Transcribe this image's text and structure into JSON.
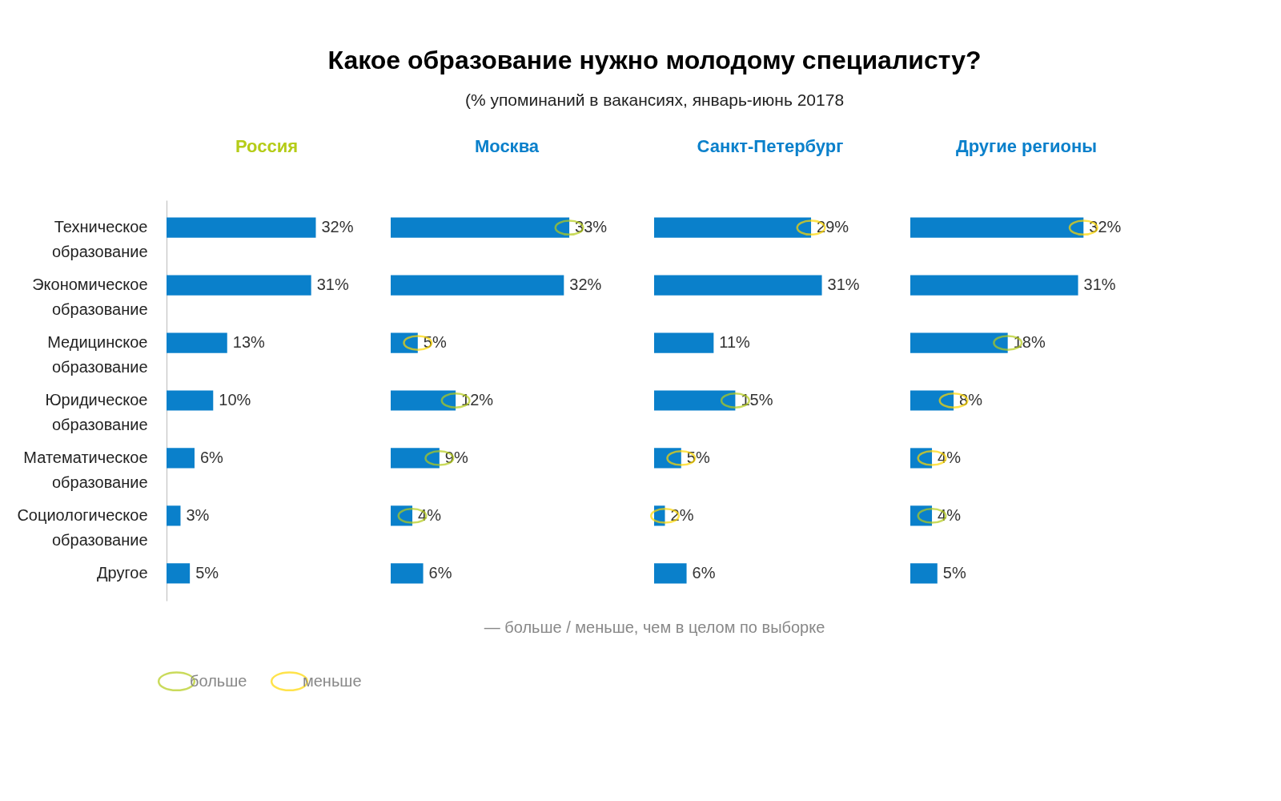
{
  "chart_data": [
    {
      "type": "other",
      "title": "Какое образование нужно молодому специалисту?",
      "subtitle": "(% упоминаний в вакансиях, январь-июнь 20178"
    },
    {
      "type": "bar",
      "orientation": "horizontal",
      "legend_title": "Россия",
      "categories": [
        "Техническое образование",
        "Экономическое образование",
        "Медицинское образование",
        "Юридическое образование",
        "Математическое образование",
        "Социологическое образование",
        "Другое"
      ],
      "tick_labels": "y",
      "series": [
        {
          "color": "#0a80cb",
          "values": [
            32,
            31,
            13,
            10,
            6,
            3,
            5
          ],
          "value_labels": [
            "32%",
            "31%",
            "13%",
            "10%",
            "6%",
            "3%",
            "5%"
          ]
        }
      ]
    },
    {
      "type": "bar",
      "orientation": "horizontal",
      "legend_title": "Москва",
      "categories": [
        "Техническое образование",
        "Экономическое образование",
        "Медицинское образование",
        "Юридическое образование",
        "Математическое образование",
        "Социологическое образование",
        "Другое"
      ],
      "tick_labels": false,
      "legend": "bottom",
      "annotations": [
        "— больше / меньше, чем в целом по выборке"
      ],
      "series": [
        {
          "color": "#0a80cb",
          "values": [
            33,
            32,
            5,
            12,
            9,
            4,
            6
          ],
          "value_labels": [
            "33%",
            "32%",
            "5%",
            "12%",
            "9%",
            "4%",
            "6%"
          ]
        },
        {
          "type": "scatter",
          "name": "больше",
          "color": "#b5cc18",
          "values": [
            33,
            null,
            null,
            12,
            9,
            4,
            null
          ]
        },
        {
          "type": "scatter",
          "name": "меньше",
          "color": "#ffd800",
          "values": [
            null,
            null,
            5,
            null,
            null,
            null,
            null
          ]
        }
      ]
    },
    {
      "type": "bar",
      "orientation": "horizontal",
      "legend_title": "Санкт-Петербург",
      "categories": [
        "Техническое образование",
        "Экономическое образование",
        "Медицинское образование",
        "Юридическое образование",
        "Математическое образование",
        "Социологическое образование",
        "Другое"
      ],
      "tick_labels": false,
      "series": [
        {
          "color": "#0a80cb",
          "values": [
            29,
            31,
            11,
            15,
            5,
            2,
            6
          ],
          "value_labels": [
            "29%",
            "31%",
            "11%",
            "15%",
            "5%",
            "2%",
            "6%"
          ]
        },
        {
          "type": "scatter",
          "color": "#b5cc18",
          "values": [
            null,
            null,
            null,
            15,
            null,
            null,
            null
          ]
        },
        {
          "type": "scatter",
          "color": "#ffd800",
          "values": [
            29,
            null,
            null,
            null,
            5,
            2,
            null
          ]
        }
      ]
    },
    {
      "type": "bar",
      "orientation": "horizontal",
      "legend_title": "Другие регионы",
      "categories": [
        "Техническое образование",
        "Экономическое образование",
        "Медицинское образование",
        "Юридическое образование",
        "Математическое образование",
        "Социологическое образование",
        "Другое"
      ],
      "tick_labels": false,
      "series": [
        {
          "color": "#0a80cb",
          "values": [
            32,
            31,
            18,
            8,
            4,
            4,
            5
          ],
          "value_labels": [
            "32%",
            "31%",
            "18%",
            "8%",
            "4%",
            "4%",
            "5%"
          ]
        },
        {
          "type": "scatter",
          "color": "#b5cc18",
          "values": [
            null,
            null,
            18,
            null,
            null,
            4,
            null
          ]
        },
        {
          "type": "scatter",
          "color": "#ffd800",
          "values": [
            32,
            null,
            null,
            8,
            4,
            null,
            null
          ]
        }
      ]
    }
  ]
}
